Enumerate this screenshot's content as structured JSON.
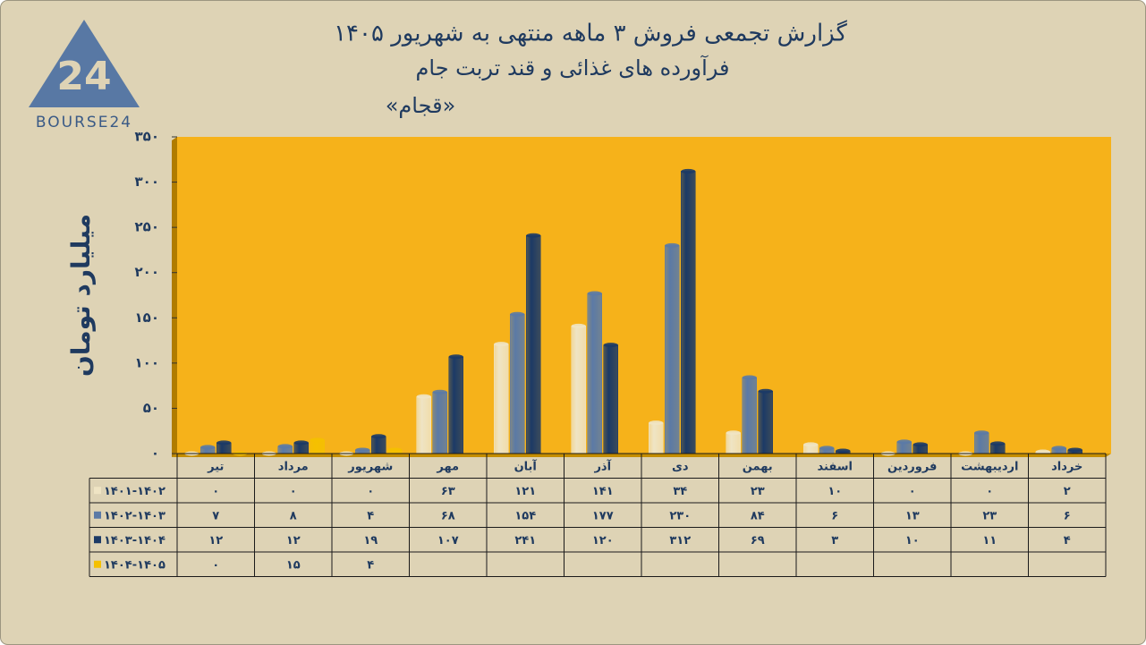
{
  "logo": {
    "mark": "24",
    "text": "BOURSE24"
  },
  "chart_data": {
    "type": "bar",
    "title": [
      "گزارش تجمعی فروش ۳ ماهه منتهی به شهریور ۱۴۰۵",
      "فرآورده های غذائی و قند تربت جام",
      "«قجام»"
    ],
    "y_label": "میلیارد تومان",
    "categories": [
      "تیر",
      "مرداد",
      "شهریور",
      "مهر",
      "آبان",
      "آذر",
      "دی",
      "بهمن",
      "اسفند",
      "فروردین",
      "اردیبهشت",
      "خرداد"
    ],
    "ylim": [
      0,
      350
    ],
    "yticks": [
      {
        "value": 0,
        "label": "۰"
      },
      {
        "value": 50,
        "label": "۵۰"
      },
      {
        "value": 100,
        "label": "۱۰۰"
      },
      {
        "value": 150,
        "label": "۱۵۰"
      },
      {
        "value": 200,
        "label": "۲۰۰"
      },
      {
        "value": 250,
        "label": "۲۵۰"
      },
      {
        "value": 300,
        "label": "۳۰۰"
      },
      {
        "value": 350,
        "label": "۳۵۰"
      }
    ],
    "series": [
      {
        "name": "۱۴۰۱-۱۴۰۲",
        "color": "#efe4c4",
        "values": [
          0,
          0,
          0,
          63,
          121,
          141,
          34,
          23,
          10,
          0,
          0,
          2
        ],
        "value_labels": [
          "۰",
          "۰",
          "۰",
          "۶۳",
          "۱۲۱",
          "۱۴۱",
          "۳۴",
          "۲۳",
          "۱۰",
          "۰",
          "۰",
          "۲"
        ]
      },
      {
        "name": "۱۴۰۲-۱۴۰۳",
        "color": "#5b7aa6",
        "values": [
          7,
          8,
          4,
          68,
          154,
          177,
          230,
          84,
          6,
          13,
          23,
          6
        ],
        "value_labels": [
          "۷",
          "۸",
          "۴",
          "۶۸",
          "۱۵۴",
          "۱۷۷",
          "۲۳۰",
          "۸۴",
          "۶",
          "۱۳",
          "۲۳",
          "۶"
        ]
      },
      {
        "name": "۱۴۰۳-۱۴۰۴",
        "color": "#1c3a66",
        "values": [
          12,
          12,
          19,
          107,
          241,
          120,
          312,
          69,
          3,
          10,
          11,
          4
        ],
        "value_labels": [
          "۱۲",
          "۱۲",
          "۱۹",
          "۱۰۷",
          "۲۴۱",
          "۱۲۰",
          "۳۱۲",
          "۶۹",
          "۳",
          "۱۰",
          "۱۱",
          "۴"
        ]
      },
      {
        "name": "۱۴۰۴-۱۴۰۵",
        "color": "#f5c000",
        "values": [
          0,
          15,
          4,
          null,
          null,
          null,
          null,
          null,
          null,
          null,
          null,
          null
        ],
        "value_labels": [
          "۰",
          "۱۵",
          "۴",
          null,
          null,
          null,
          null,
          null,
          null,
          null,
          null,
          null
        ]
      }
    ],
    "plot_background": "#f6b21a"
  }
}
